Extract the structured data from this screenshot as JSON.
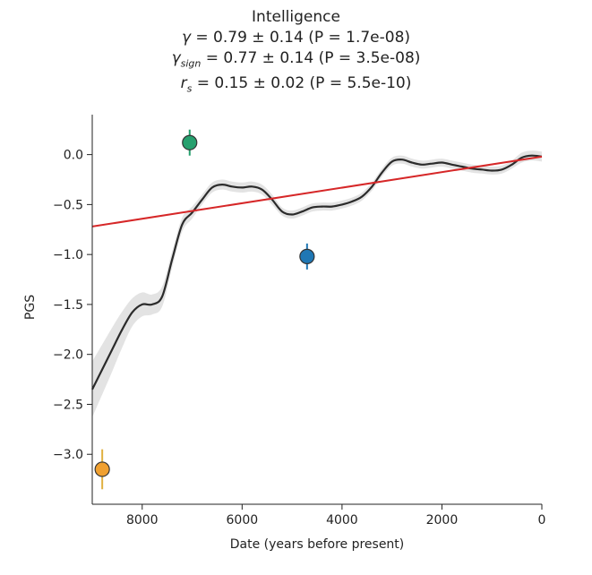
{
  "chart_data": {
    "type": "line",
    "title": "Intelligence",
    "stats": {
      "gamma": {
        "symbol": "γ",
        "sub": "",
        "text": " = 0.79 ± 0.14 (P = 1.7e-08)"
      },
      "gamma_sign": {
        "symbol": "γ",
        "sub": "sign",
        "text": " = 0.77 ± 0.14 (P = 3.5e-08)"
      },
      "r_s": {
        "symbol": "r",
        "sub": "s",
        "text": " = 0.15 ± 0.02 (P = 5.5e-10)"
      }
    },
    "xlabel": "Date (years before present)",
    "ylabel": "PGS",
    "xlim": [
      9000,
      0
    ],
    "ylim": [
      -3.5,
      0.4
    ],
    "x_ticks": [
      8000,
      6000,
      4000,
      2000,
      0
    ],
    "y_ticks": [
      0.0,
      -0.5,
      -1.0,
      -1.5,
      -2.0,
      -2.5,
      -3.0
    ],
    "x_tick_labels": [
      "8000",
      "6000",
      "4000",
      "2000",
      "0"
    ],
    "y_tick_labels": [
      "0.0",
      "−0.5",
      "−1.0",
      "−1.5",
      "−2.0",
      "−2.5",
      "−3.0"
    ],
    "grid": false,
    "series": [
      {
        "type": "line",
        "color": "#2b2b2b",
        "band_color": "#e3e3e3",
        "x": [
          9000,
          8800,
          8600,
          8400,
          8200,
          8000,
          7800,
          7600,
          7400,
          7200,
          7000,
          6800,
          6600,
          6400,
          6200,
          6000,
          5800,
          5600,
          5400,
          5200,
          5000,
          4800,
          4600,
          4400,
          4200,
          4000,
          3800,
          3600,
          3400,
          3200,
          3000,
          2800,
          2600,
          2400,
          2200,
          2000,
          1800,
          1600,
          1400,
          1200,
          1000,
          800,
          600,
          400,
          200,
          0
        ],
        "y": [
          -2.35,
          -2.15,
          -1.95,
          -1.75,
          -1.58,
          -1.5,
          -1.5,
          -1.42,
          -1.05,
          -0.7,
          -0.58,
          -0.45,
          -0.33,
          -0.3,
          -0.32,
          -0.33,
          -0.32,
          -0.35,
          -0.45,
          -0.57,
          -0.6,
          -0.57,
          -0.53,
          -0.52,
          -0.52,
          -0.5,
          -0.47,
          -0.42,
          -0.32,
          -0.18,
          -0.07,
          -0.05,
          -0.08,
          -0.1,
          -0.09,
          -0.08,
          -0.1,
          -0.12,
          -0.14,
          -0.15,
          -0.16,
          -0.15,
          -0.1,
          -0.03,
          -0.01,
          -0.02
        ],
        "band_half_width": [
          0.28,
          0.25,
          0.22,
          0.18,
          0.14,
          0.12,
          0.1,
          0.1,
          0.08,
          0.07,
          0.06,
          0.05,
          0.05,
          0.05,
          0.05,
          0.05,
          0.05,
          0.05,
          0.05,
          0.04,
          0.04,
          0.04,
          0.04,
          0.04,
          0.04,
          0.04,
          0.04,
          0.04,
          0.04,
          0.04,
          0.04,
          0.04,
          0.04,
          0.04,
          0.04,
          0.04,
          0.04,
          0.04,
          0.04,
          0.04,
          0.04,
          0.04,
          0.04,
          0.05,
          0.05,
          0.05
        ]
      },
      {
        "type": "regression",
        "color": "#d62728",
        "x": [
          9000,
          0
        ],
        "y": [
          -0.72,
          -0.02
        ]
      }
    ],
    "points": [
      {
        "x": 7050,
        "y": 0.12,
        "err": 0.13,
        "fill": "#26a06e",
        "err_color": "#26a06e"
      },
      {
        "x": 4700,
        "y": -1.02,
        "err": 0.13,
        "fill": "#1f77b4",
        "err_color": "#1f77b4"
      },
      {
        "x": 8800,
        "y": -3.15,
        "err": 0.2,
        "fill": "#f0a030",
        "err_color": "#e0b040"
      }
    ]
  }
}
